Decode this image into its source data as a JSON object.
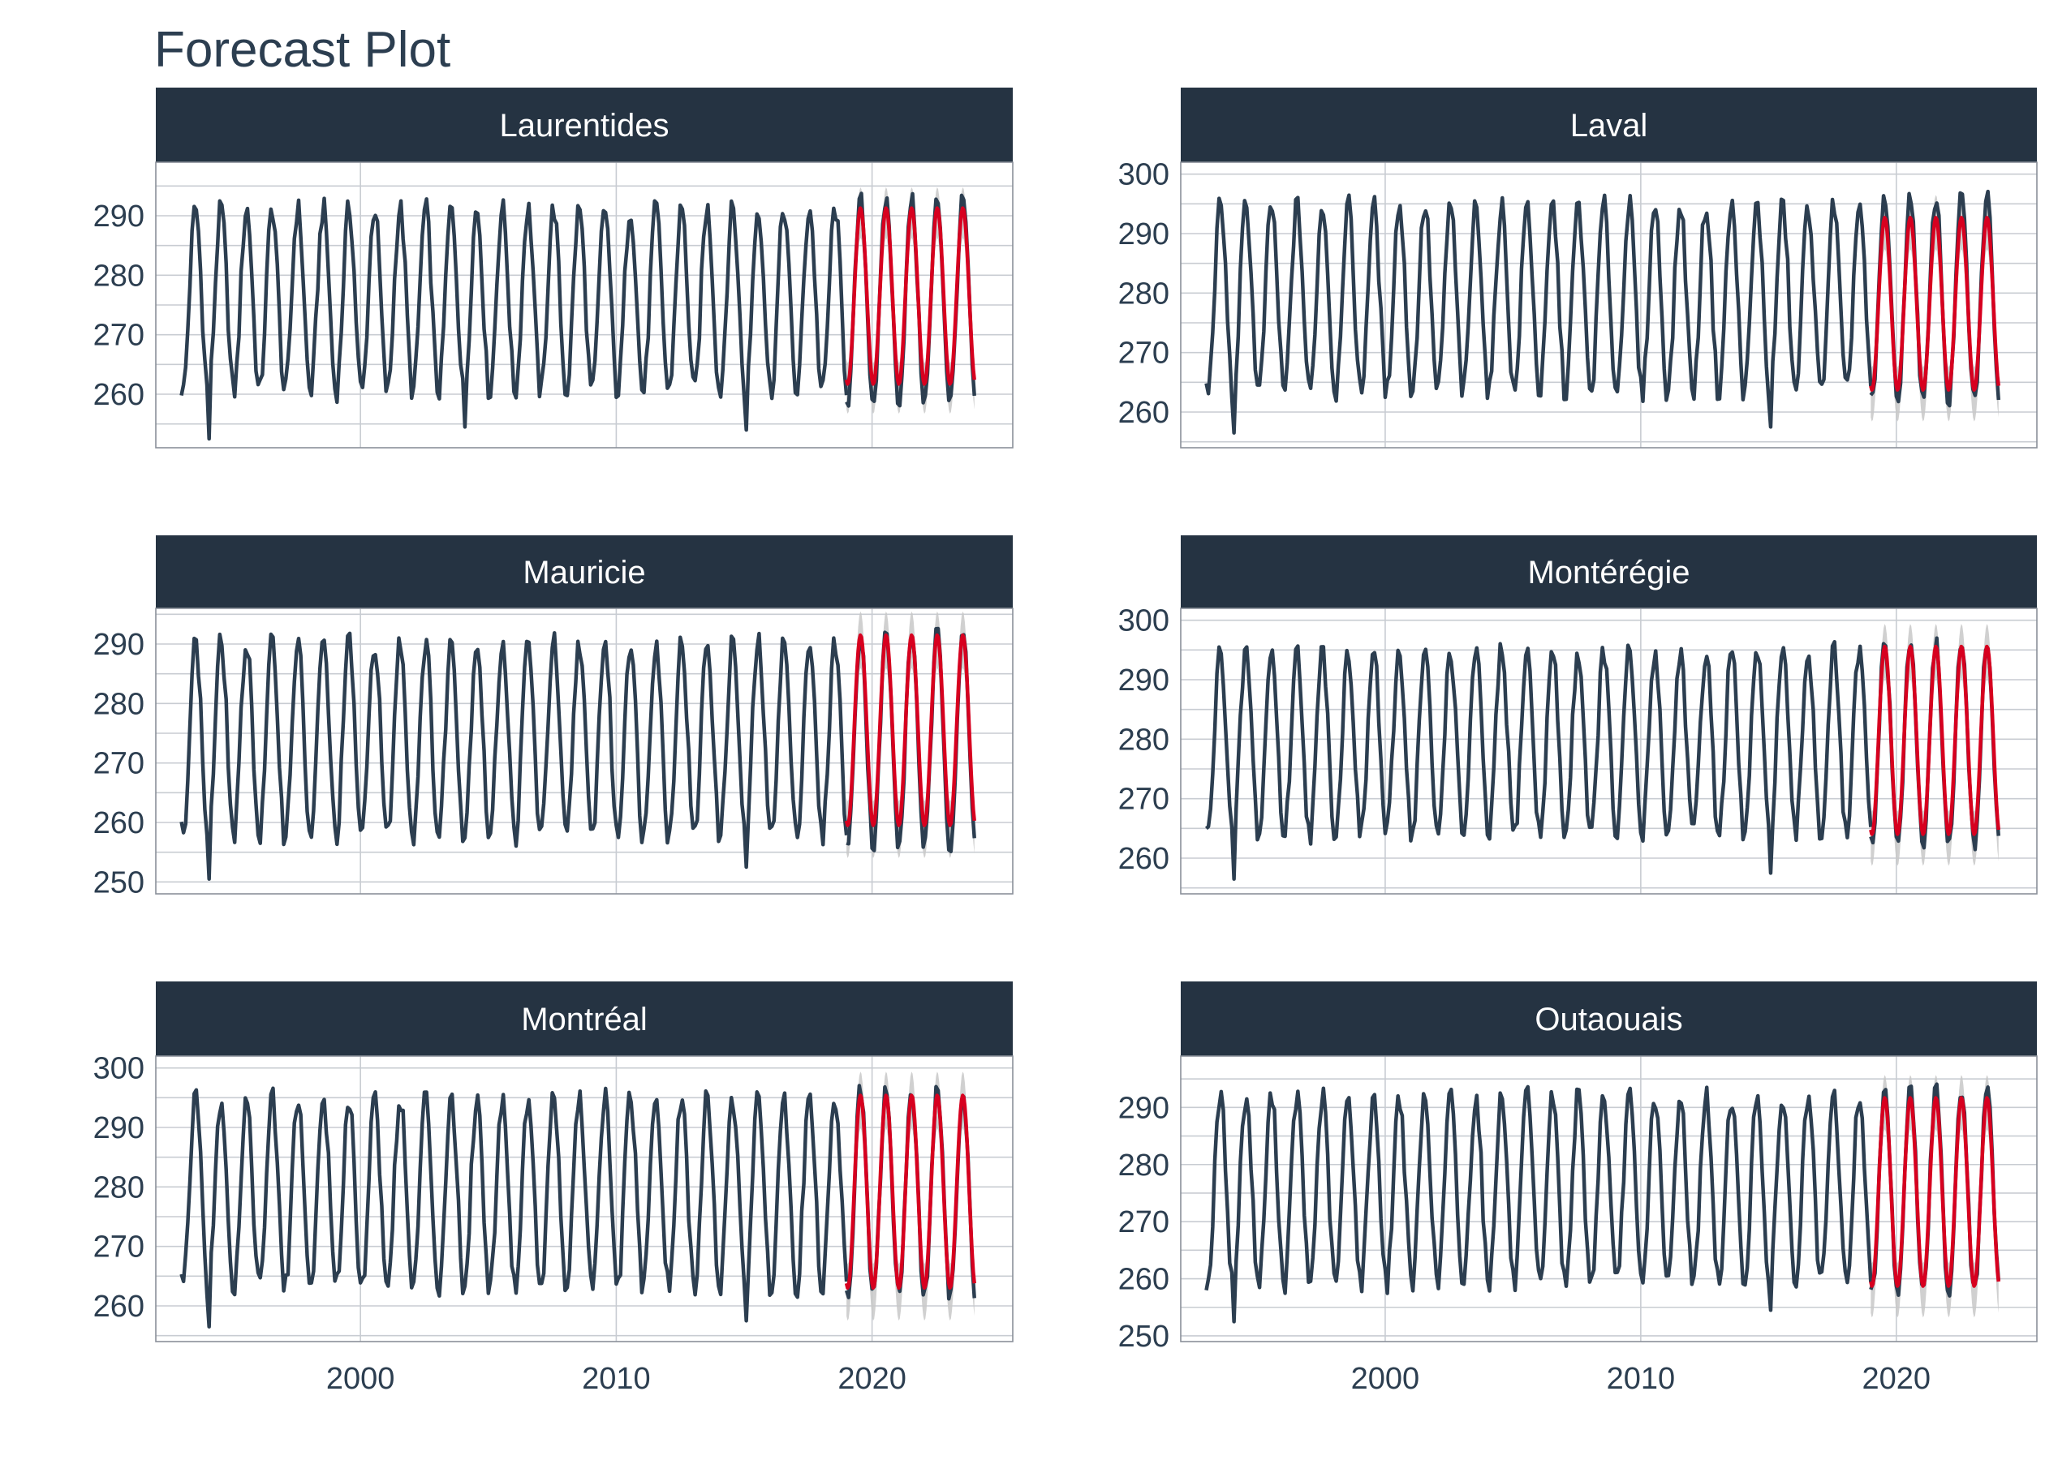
{
  "title": "Forecast Plot",
  "colors": {
    "history": "#2c3e50",
    "forecast": "#d7001f",
    "band": "#c8c8c8",
    "strip": "#253342",
    "strip_text": "#ffffff",
    "grid": "#c8ccd2"
  },
  "chart_data": [
    {
      "type": "line",
      "panel": "Laurentides",
      "xlim": [
        1992,
        2025.5
      ],
      "ylim": [
        251,
        299
      ],
      "yticks": [
        260,
        270,
        280,
        290
      ],
      "xticks": [
        2000,
        2010,
        2020
      ],
      "xlabel": "",
      "ylabel": "",
      "start": 1993.0,
      "end_history": 2019.0,
      "end": 2024.0,
      "history_params": {
        "mean": 275.8,
        "amp": 15.5
      },
      "history_extremes": [
        {
          "x": 1994.1,
          "y": 252.5
        },
        {
          "x": 2004.1,
          "y": 254.5
        },
        {
          "x": 2015.1,
          "y": 254.0
        }
      ],
      "series": [
        {
          "values_summary": "monthly observations 1993-2019, oscillating ~258-293"
        },
        {
          "values_summary": "forecast 2019-2024, oscillating ~261-292"
        }
      ],
      "forecast_params": {
        "mean": 276.5,
        "amp": 14.8,
        "band": 3.5
      }
    },
    {
      "type": "line",
      "panel": "Laval",
      "xlim": [
        1992,
        2025.5
      ],
      "ylim": [
        254,
        302
      ],
      "yticks": [
        260,
        270,
        280,
        290,
        300
      ],
      "xticks": [
        2000,
        2010,
        2020
      ],
      "xlabel": "",
      "ylabel": "",
      "start": 1993.0,
      "end_history": 2019.0,
      "end": 2024.0,
      "history_params": {
        "mean": 279.0,
        "amp": 15.8
      },
      "history_extremes": [
        {
          "x": 1994.1,
          "y": 256.5
        },
        {
          "x": 2015.1,
          "y": 257.5
        }
      ],
      "series": [
        {
          "values_summary": "monthly observations 1993-2019, oscillating ~261-296"
        },
        {
          "values_summary": "forecast 2019-2024, oscillating ~263-293"
        }
      ],
      "forecast_params": {
        "mean": 278.2,
        "amp": 14.5,
        "band": 3.8
      }
    },
    {
      "type": "line",
      "panel": "Mauricie",
      "xlim": [
        1992,
        2025.5
      ],
      "ylim": [
        248,
        296
      ],
      "yticks": [
        250,
        260,
        270,
        280,
        290
      ],
      "xticks": [
        2000,
        2010,
        2020
      ],
      "xlabel": "",
      "ylabel": "",
      "start": 1993.0,
      "end_history": 2019.0,
      "end": 2024.0,
      "history_params": {
        "mean": 274.0,
        "amp": 16.5
      },
      "history_extremes": [
        {
          "x": 1994.1,
          "y": 250.5
        },
        {
          "x": 2015.1,
          "y": 252.5
        }
      ],
      "series": [
        {
          "values_summary": "monthly observations 1993-2019, oscillating ~256-293"
        },
        {
          "values_summary": "forecast 2019-2024, oscillating ~259-293"
        }
      ],
      "forecast_params": {
        "mean": 275.5,
        "amp": 16.0,
        "band": 4.0
      }
    },
    {
      "type": "line",
      "panel": "Montérégie",
      "xlim": [
        1992,
        2025.5
      ],
      "ylim": [
        254,
        302
      ],
      "yticks": [
        260,
        270,
        280,
        290,
        300
      ],
      "xticks": [
        2000,
        2010,
        2020
      ],
      "xlabel": "",
      "ylabel": "",
      "start": 1993.0,
      "end_history": 2019.0,
      "end": 2024.0,
      "history_params": {
        "mean": 279.3,
        "amp": 15.5
      },
      "history_extremes": [
        {
          "x": 1994.1,
          "y": 256.5
        },
        {
          "x": 2015.1,
          "y": 257.5
        }
      ],
      "series": [
        {
          "values_summary": "monthly observations 1993-2019, oscillating ~262-296"
        },
        {
          "values_summary": "forecast 2019-2024, oscillating ~263-296"
        }
      ],
      "forecast_params": {
        "mean": 279.8,
        "amp": 15.8,
        "band": 3.8
      }
    },
    {
      "type": "line",
      "panel": "Montréal",
      "xlim": [
        1992,
        2025.5
      ],
      "ylim": [
        254,
        302
      ],
      "yticks": [
        260,
        270,
        280,
        290,
        300
      ],
      "xticks": [
        2000,
        2010,
        2020
      ],
      "xlabel": "",
      "ylabel": "",
      "start": 1993.0,
      "end_history": 2019.0,
      "end": 2024.0,
      "history_params": {
        "mean": 279.0,
        "amp": 16.0
      },
      "history_extremes": [
        {
          "x": 1994.1,
          "y": 256.5
        },
        {
          "x": 2015.1,
          "y": 257.5
        }
      ],
      "series": [
        {
          "values_summary": "monthly observations 1993-2019, oscillating ~261-296"
        },
        {
          "values_summary": "forecast 2019-2024, oscillating ~262-296"
        }
      ],
      "forecast_params": {
        "mean": 279.2,
        "amp": 16.2,
        "band": 4.0
      }
    },
    {
      "type": "line",
      "panel": "Outaouais",
      "xlim": [
        1992,
        2025.5
      ],
      "ylim": [
        249,
        299
      ],
      "yticks": [
        250,
        260,
        270,
        280,
        290
      ],
      "xticks": [
        2000,
        2010,
        2020
      ],
      "xlabel": "",
      "ylabel": "",
      "start": 1993.0,
      "end_history": 2019.0,
      "end": 2024.0,
      "history_params": {
        "mean": 275.5,
        "amp": 16.5
      },
      "history_extremes": [
        {
          "x": 1994.1,
          "y": 252.5
        },
        {
          "x": 2015.1,
          "y": 254.5
        }
      ],
      "series": [
        {
          "values_summary": "monthly observations 1993-2019, oscillating ~257-294"
        },
        {
          "values_summary": "forecast 2019-2024, oscillating ~258-293"
        }
      ],
      "forecast_params": {
        "mean": 275.2,
        "amp": 16.5,
        "band": 4.0
      }
    }
  ]
}
